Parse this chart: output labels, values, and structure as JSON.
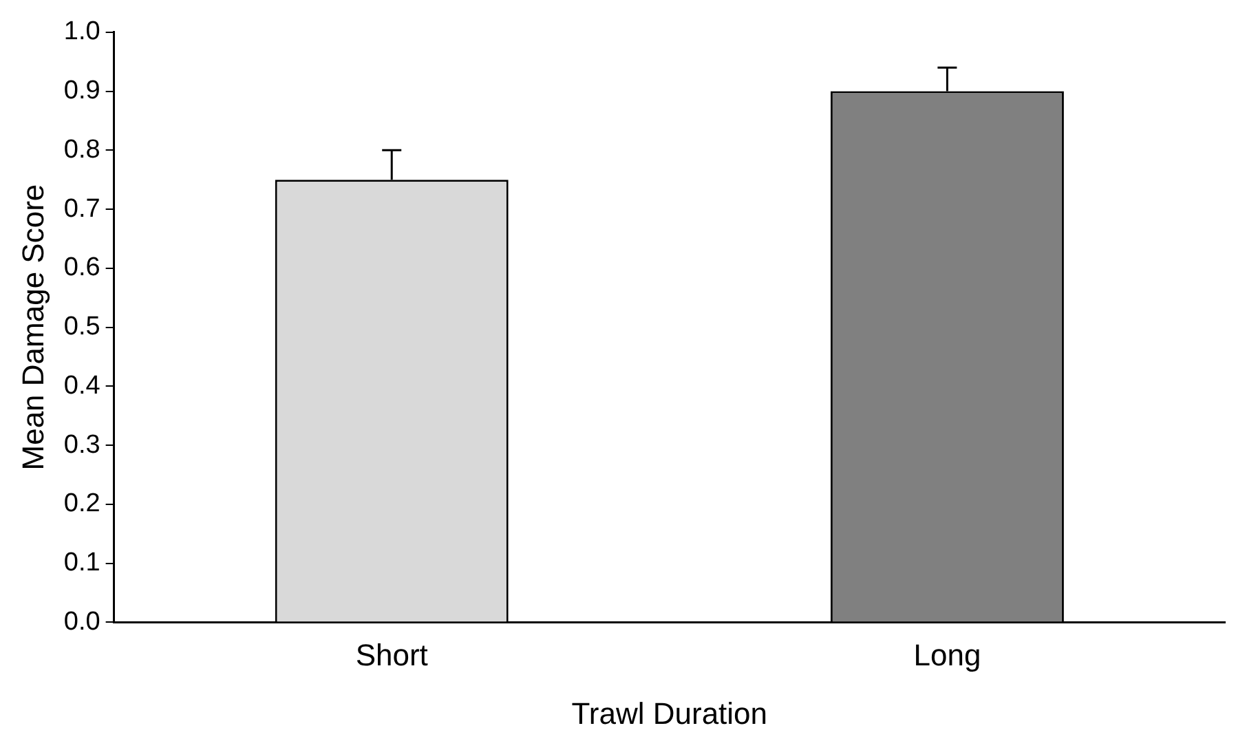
{
  "chart_data": {
    "type": "bar",
    "xlabel": "Trawl Duration",
    "ylabel": "Mean Damage Score",
    "categories": [
      "Short",
      "Long"
    ],
    "values": [
      0.75,
      0.9
    ],
    "colors": [
      "#d9d9d9",
      "#808080"
    ],
    "errors": [
      [
        0.75,
        0.8
      ],
      [
        0.9,
        0.94
      ]
    ],
    "ylim": [
      0,
      1
    ],
    "yticks": [
      {
        "value": 0,
        "label": "0.0"
      },
      0.1,
      0.2,
      0.3,
      0.4,
      0.5,
      0.6,
      0.7,
      0.8,
      0.9,
      {
        "value": 1,
        "label": "1.0"
      }
    ],
    "grid": false,
    "legend": false
  }
}
